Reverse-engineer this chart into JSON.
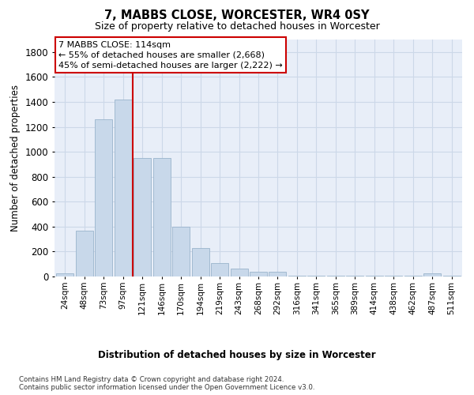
{
  "title": "7, MABBS CLOSE, WORCESTER, WR4 0SY",
  "subtitle": "Size of property relative to detached houses in Worcester",
  "xlabel": "Distribution of detached houses by size in Worcester",
  "ylabel": "Number of detached properties",
  "bar_color": "#c8d8ea",
  "bar_edge_color": "#9ab4cc",
  "grid_color": "#ccd8e8",
  "bg_color": "#e8eef8",
  "annotation_line_color": "#cc0000",
  "annotation_box_color": "#cc0000",
  "annotation_text": "7 MABBS CLOSE: 114sqm\n← 55% of detached houses are smaller (2,668)\n45% of semi-detached houses are larger (2,222) →",
  "categories": [
    "24sqm",
    "48sqm",
    "73sqm",
    "97sqm",
    "121sqm",
    "146sqm",
    "170sqm",
    "194sqm",
    "219sqm",
    "243sqm",
    "268sqm",
    "292sqm",
    "316sqm",
    "341sqm",
    "365sqm",
    "389sqm",
    "414sqm",
    "438sqm",
    "462sqm",
    "487sqm",
    "511sqm"
  ],
  "values": [
    28,
    370,
    1260,
    1420,
    950,
    950,
    400,
    230,
    110,
    65,
    40,
    40,
    8,
    5,
    5,
    5,
    5,
    5,
    5,
    28,
    5
  ],
  "red_line_x": 3.5,
  "ylim": [
    0,
    1900
  ],
  "yticks": [
    0,
    200,
    400,
    600,
    800,
    1000,
    1200,
    1400,
    1600,
    1800
  ],
  "footnote": "Contains HM Land Registry data © Crown copyright and database right 2024.\nContains public sector information licensed under the Open Government Licence v3.0."
}
